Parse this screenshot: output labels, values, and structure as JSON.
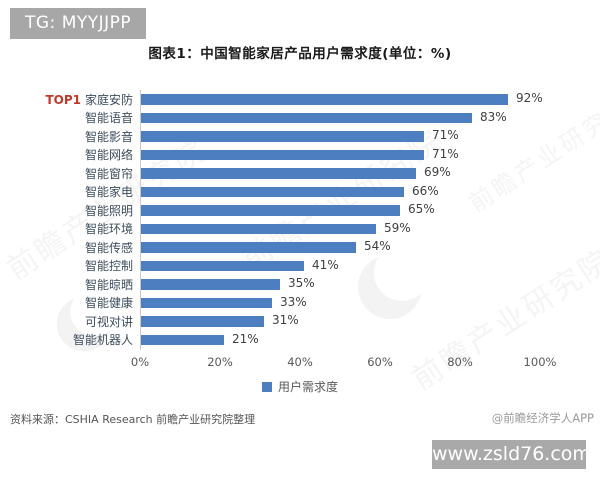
{
  "badges": {
    "tg": "TG: MYYJJPP",
    "site": "www.zsld76.com"
  },
  "watermark": {
    "diagonal_text": "前瞻产业研究院"
  },
  "footer": {
    "source": "资料来源：CSHIA Research 前瞻产业研究院整理",
    "credit": "@前瞻经济学人APP"
  },
  "chart_data": {
    "type": "bar",
    "orientation": "horizontal",
    "title": "图表1：中国智能家居产品用户需求度(单位：%)",
    "top1_prefix": "TOP1",
    "categories": [
      "家庭安防",
      "智能语音",
      "智能影音",
      "智能网络",
      "智能窗帘",
      "智能家电",
      "智能照明",
      "智能环境",
      "智能传感",
      "智能控制",
      "智能晾晒",
      "智能健康",
      "可视对讲",
      "智能机器人"
    ],
    "values": [
      92,
      83,
      71,
      71,
      69,
      66,
      65,
      59,
      54,
      41,
      35,
      33,
      31,
      21
    ],
    "value_labels": [
      "92%",
      "83%",
      "71%",
      "71%",
      "69%",
      "66%",
      "65%",
      "59%",
      "54%",
      "41%",
      "35%",
      "33%",
      "31%",
      "21%"
    ],
    "x_ticks": [
      "0%",
      "20%",
      "40%",
      "60%",
      "80%",
      "100%"
    ],
    "x_tick_values": [
      0,
      20,
      40,
      60,
      80,
      100
    ],
    "xlim": [
      0,
      100
    ],
    "xlabel": "",
    "ylabel": "",
    "grid": false,
    "legend": [
      "用户需求度"
    ],
    "legend_position": "bottom",
    "bar_color": "#4d7ebf",
    "top1_color": "#bf3a2b",
    "axis_line_color": "#c9c9c9"
  }
}
